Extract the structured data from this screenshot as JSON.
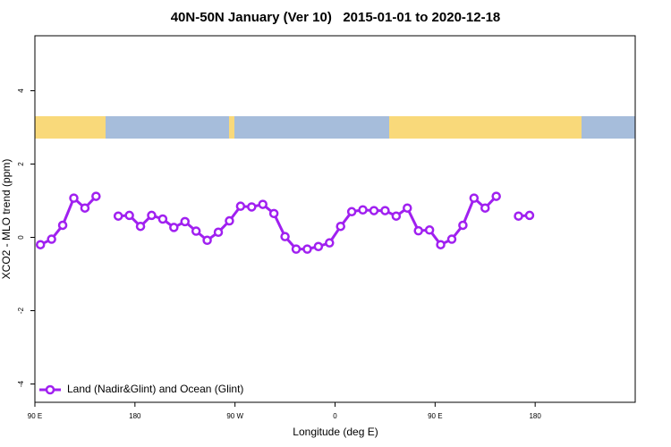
{
  "chart_data": {
    "type": "line",
    "title": "40N-50N January (Ver 10)   2015-01-01 to 2020-12-18",
    "x_label": "Longitude (deg E)",
    "y_label": "XCO2 - MLO trend (ppm)",
    "x": [
      95,
      105,
      115,
      125,
      135,
      145,
      155,
      165,
      175,
      185,
      195,
      205,
      215,
      225,
      235,
      245,
      255,
      265,
      275,
      285,
      295,
      305,
      315,
      325,
      335,
      345,
      355,
      365,
      375,
      385,
      395,
      405,
      415,
      425,
      435,
      445,
      455,
      465,
      475,
      485,
      495,
      505,
      515,
      525,
      535
    ],
    "series": [
      {
        "name": "Land (Nadir&Glint) and Ocean (Glint)",
        "color": "#a020f0",
        "values": [
          -0.2,
          -0.05,
          0.33,
          1.07,
          0.8,
          1.12,
          null,
          0.58,
          0.6,
          0.3,
          0.6,
          0.5,
          0.27,
          0.43,
          0.17,
          -0.08,
          0.14,
          0.45,
          0.85,
          0.83,
          0.9,
          0.65,
          0.02,
          -0.32,
          -0.32,
          -0.25,
          -0.15,
          0.3,
          0.7,
          0.75,
          0.73,
          0.73,
          0.58,
          0.8,
          0.18,
          0.2,
          -0.2,
          -0.05,
          0.33,
          1.07,
          0.8,
          1.12,
          null,
          0.58,
          0.6
        ]
      }
    ],
    "xlim": [
      90,
      630
    ],
    "xticks": [
      {
        "value": 90,
        "label": "90 E"
      },
      180,
      {
        "value": 270,
        "label": "90 W"
      },
      {
        "value": 360,
        "label": "0"
      },
      {
        "value": 450,
        "label": "90 E"
      },
      {
        "value": 540,
        "label": "180"
      }
    ],
    "ylim": [
      -4.5,
      5.5
    ],
    "yticks": [
      -4,
      -2,
      0,
      2,
      4
    ],
    "legend": "bottom-left"
  }
}
